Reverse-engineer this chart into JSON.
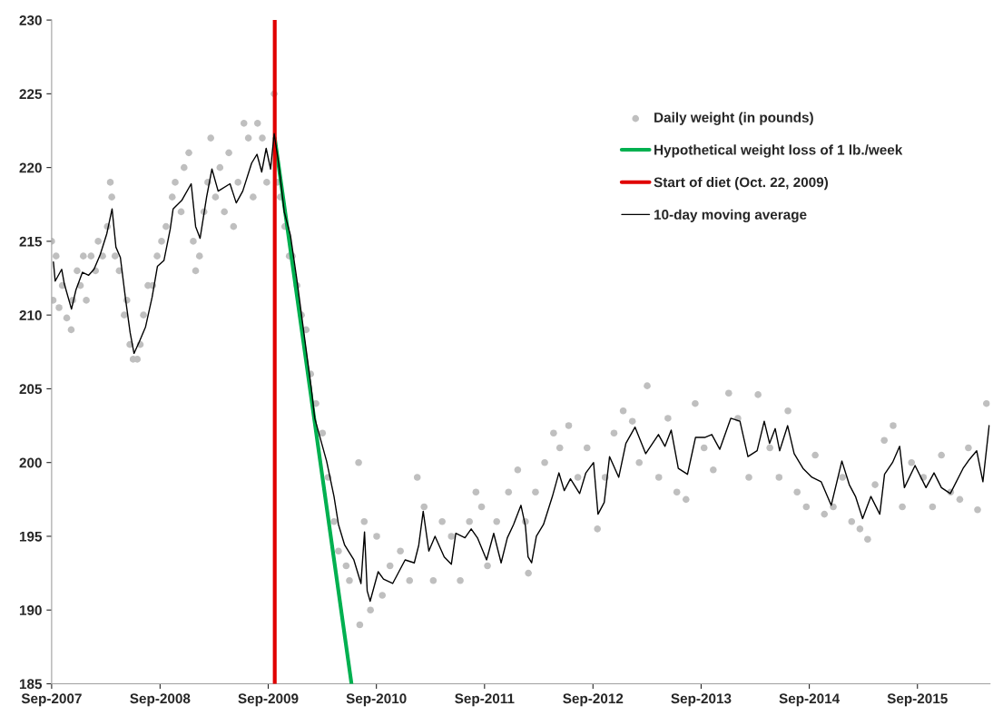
{
  "chart_data": {
    "type": "line",
    "xlim": [
      "2007-09-30",
      "2016-06-01"
    ],
    "xticks": [
      {
        "value": "2007-09-30",
        "label": "Sep-2007"
      },
      {
        "value": "2008-09-30",
        "label": "Sep-2008"
      },
      {
        "value": "2009-09-30",
        "label": "Sep-2009"
      },
      {
        "value": "2010-09-30",
        "label": "Sep-2010"
      },
      {
        "value": "2011-09-30",
        "label": "Sep-2011"
      },
      {
        "value": "2012-09-30",
        "label": "Sep-2012"
      },
      {
        "value": "2013-09-30",
        "label": "Sep-2013"
      },
      {
        "value": "2014-09-30",
        "label": "Sep-2014"
      },
      {
        "value": "2015-09-30",
        "label": "Sep-2015"
      }
    ],
    "ylim": [
      185,
      230
    ],
    "yticks": [
      185,
      190,
      195,
      200,
      205,
      210,
      215,
      220,
      225,
      230
    ],
    "grid": false,
    "legend": "top right",
    "series": [
      {
        "name": "Daily weight (in pounds)",
        "type": "scatter",
        "marker": "circle",
        "color": "#bfbfbf",
        "x": [
          "2007-09-30",
          "2007-10-05",
          "2007-10-15",
          "2007-10-25",
          "2007-11-05",
          "2007-11-20",
          "2007-12-05",
          "2007-12-10",
          "2007-12-25",
          "2008-01-05",
          "2008-01-15",
          "2008-01-25",
          "2008-02-10",
          "2008-02-25",
          "2008-03-05",
          "2008-03-20",
          "2008-04-05",
          "2008-04-15",
          "2008-04-20",
          "2008-05-01",
          "2008-05-15",
          "2008-06-01",
          "2008-06-10",
          "2008-06-20",
          "2008-07-01",
          "2008-07-15",
          "2008-07-25",
          "2008-08-05",
          "2008-08-20",
          "2008-09-05",
          "2008-09-20",
          "2008-10-05",
          "2008-10-20",
          "2008-11-10",
          "2008-11-20",
          "2008-12-10",
          "2008-12-20",
          "2009-01-05",
          "2009-01-20",
          "2009-01-28",
          "2009-02-10",
          "2009-02-25",
          "2009-03-10",
          "2009-03-20",
          "2009-04-05",
          "2009-04-20",
          "2009-05-05",
          "2009-05-20",
          "2009-06-05",
          "2009-06-20",
          "2009-07-10",
          "2009-07-25",
          "2009-08-10",
          "2009-08-25",
          "2009-09-10",
          "2009-09-25",
          "2009-10-20",
          "2009-11-01",
          "2009-11-10",
          "2009-11-25",
          "2009-12-10",
          "2009-12-20",
          "2010-01-05",
          "2010-01-20",
          "2010-02-05",
          "2010-02-20",
          "2010-03-10",
          "2010-04-01",
          "2010-04-20",
          "2010-05-10",
          "2010-05-25",
          "2010-06-20",
          "2010-07-01",
          "2010-08-01",
          "2010-08-05",
          "2010-08-20",
          "2010-09-10",
          "2010-10-01",
          "2010-10-20",
          "2010-11-15",
          "2010-12-20",
          "2011-01-20",
          "2011-02-15",
          "2011-03-10",
          "2011-04-10",
          "2011-05-10",
          "2011-06-10",
          "2011-07-10",
          "2011-08-10",
          "2011-09-01",
          "2011-09-20",
          "2011-10-10",
          "2011-11-10",
          "2011-12-20",
          "2012-01-20",
          "2012-02-15",
          "2012-02-25",
          "2012-03-20",
          "2012-04-20",
          "2012-05-20",
          "2012-06-10",
          "2012-07-10",
          "2012-08-10",
          "2012-09-10",
          "2012-10-15",
          "2012-11-10",
          "2012-12-10",
          "2013-01-10",
          "2013-02-10",
          "2013-03-05",
          "2013-04-01",
          "2013-05-10",
          "2013-06-10",
          "2013-07-10",
          "2013-08-10",
          "2013-09-10",
          "2013-10-10",
          "2013-11-10",
          "2014-01-01",
          "2014-02-01",
          "2014-03-10",
          "2014-04-10",
          "2014-05-20",
          "2014-06-20",
          "2014-07-20",
          "2014-08-20",
          "2014-09-20",
          "2014-10-20",
          "2014-11-20",
          "2014-12-20",
          "2015-01-20",
          "2015-02-20",
          "2015-03-20",
          "2015-04-15",
          "2015-05-10",
          "2015-06-10",
          "2015-07-10",
          "2015-08-10",
          "2015-09-10",
          "2015-10-20",
          "2015-11-20",
          "2015-12-20",
          "2016-01-20",
          "2016-02-20",
          "2016-03-20",
          "2016-04-20",
          "2016-05-20"
        ],
        "values": [
          215,
          211,
          214,
          210.5,
          212,
          209.8,
          209,
          211,
          213,
          212,
          214,
          211,
          214,
          213,
          215,
          214,
          216,
          219,
          218,
          214,
          213,
          210,
          211,
          208,
          207,
          207,
          208,
          210,
          212,
          212,
          214,
          215,
          216,
          218,
          219,
          217,
          220,
          221,
          215,
          213,
          214,
          217,
          219,
          222,
          218,
          220,
          217,
          221,
          216,
          219,
          223,
          222,
          218,
          223,
          222,
          219,
          225,
          219,
          218,
          216,
          214,
          214,
          212,
          210,
          209,
          206,
          204,
          202,
          199,
          196,
          194,
          193,
          192,
          200,
          189,
          196,
          190,
          195,
          191,
          193,
          194,
          192,
          199,
          197,
          192,
          196,
          195,
          192,
          196,
          198,
          197,
          193,
          196,
          198,
          199.5,
          196,
          192.5,
          198,
          200,
          202,
          201,
          202.5,
          199,
          201,
          195.5,
          199,
          202,
          203.5,
          202.8,
          200,
          205.2,
          199,
          203,
          198,
          197.5,
          204,
          201,
          199.5,
          204.7,
          203,
          199,
          204.6,
          201,
          199,
          203.5,
          198,
          197,
          200.5,
          196.5,
          197,
          199,
          196,
          195.5,
          194.8,
          198.5,
          201.5,
          202.5,
          197,
          200,
          199,
          197,
          200.5,
          198,
          197.5,
          201,
          196.8,
          204
        ]
      },
      {
        "name": "Hypothetical weight loss of 1 lb./week",
        "color": "#00b050",
        "x": [
          "2009-10-22",
          "2010-07-08"
        ],
        "values": [
          222,
          185
        ]
      },
      {
        "name": "Start of diet (Oct. 22, 2009)",
        "color": "#e00000",
        "x": [
          "2009-10-22",
          "2009-10-22"
        ],
        "values": [
          185,
          230
        ]
      },
      {
        "name": "10-day moving average",
        "color": "#000000",
        "x": [
          "2007-10-06",
          "2007-10-12",
          "2007-11-03",
          "2007-11-12",
          "2007-12-06",
          "2007-12-21",
          "2008-01-12",
          "2008-02-02",
          "2008-02-20",
          "2008-03-12",
          "2008-04-03",
          "2008-04-21",
          "2008-05-04",
          "2008-05-19",
          "2008-06-06",
          "2008-06-21",
          "2008-07-04",
          "2008-07-22",
          "2008-08-12",
          "2008-09-03",
          "2008-09-21",
          "2008-10-13",
          "2008-11-03",
          "2008-11-13",
          "2008-12-13",
          "2009-01-13",
          "2009-01-28",
          "2009-02-12",
          "2009-03-06",
          "2009-03-24",
          "2009-04-14",
          "2009-05-24",
          "2009-06-14",
          "2009-07-06",
          "2009-08-05",
          "2009-08-23",
          "2009-09-08",
          "2009-09-23",
          "2009-10-08",
          "2009-10-20",
          "2009-11-04",
          "2009-11-23",
          "2009-12-14",
          "2010-01-04",
          "2010-01-23",
          "2010-02-22",
          "2010-03-06",
          "2010-04-15",
          "2010-05-10",
          "2010-05-25",
          "2010-06-15",
          "2010-07-16",
          "2010-08-09",
          "2010-08-21",
          "2010-08-30",
          "2010-09-09",
          "2010-10-06",
          "2010-10-24",
          "2010-11-24",
          "2011-01-05",
          "2011-02-05",
          "2011-02-20",
          "2011-03-07",
          "2011-03-26",
          "2011-04-16",
          "2011-05-17",
          "2011-06-10",
          "2011-06-25",
          "2011-07-26",
          "2011-08-16",
          "2011-09-06",
          "2011-10-07",
          "2011-10-31",
          "2011-11-25",
          "2011-12-16",
          "2012-01-06",
          "2012-01-31",
          "2012-02-15",
          "2012-02-24",
          "2012-03-07",
          "2012-03-23",
          "2012-04-16",
          "2012-05-16",
          "2012-06-07",
          "2012-06-25",
          "2012-07-16",
          "2012-08-16",
          "2012-09-06",
          "2012-10-02",
          "2012-10-17",
          "2012-11-07",
          "2012-11-25",
          "2012-12-26",
          "2013-01-19",
          "2013-02-19",
          "2013-03-27",
          "2013-05-09",
          "2013-05-31",
          "2013-06-21",
          "2013-07-15",
          "2013-08-15",
          "2013-09-11",
          "2013-10-12",
          "2013-11-05",
          "2013-12-02",
          "2014-01-08",
          "2014-02-08",
          "2014-03-07",
          "2014-04-07",
          "2014-05-01",
          "2014-05-19",
          "2014-06-07",
          "2014-06-22",
          "2014-07-19",
          "2014-08-10",
          "2014-09-09",
          "2014-10-09",
          "2014-11-09",
          "2014-12-13",
          "2015-01-18",
          "2015-02-12",
          "2015-03-05",
          "2015-03-29",
          "2015-04-26",
          "2015-05-26",
          "2015-06-11",
          "2015-07-08",
          "2015-08-01",
          "2015-08-17",
          "2015-09-22",
          "2015-10-29",
          "2015-11-25",
          "2015-12-20",
          "2016-01-19",
          "2016-03-02",
          "2016-03-23",
          "2016-04-17",
          "2016-05-08",
          "2016-05-29"
        ],
        "values": [
          213.6,
          212.3,
          213.1,
          212.1,
          210.4,
          211.7,
          212.9,
          212.7,
          213.1,
          214.1,
          215.5,
          217.2,
          214.6,
          213.9,
          211.0,
          208.8,
          207.4,
          208.2,
          209.2,
          211.2,
          213.3,
          213.7,
          215.8,
          217.2,
          217.8,
          218.9,
          216.0,
          215.2,
          218.0,
          219.9,
          218.4,
          218.9,
          217.6,
          218.4,
          220.3,
          220.9,
          219.7,
          221.3,
          219.9,
          222.3,
          220.3,
          217.0,
          215.4,
          212.5,
          209.6,
          205.1,
          203.0,
          200.1,
          197.7,
          195.8,
          194.4,
          193.4,
          191.8,
          195.3,
          191.3,
          190.6,
          192.6,
          192.1,
          191.8,
          193.4,
          193.2,
          194.4,
          196.7,
          194.0,
          195.0,
          193.6,
          193.1,
          195.2,
          194.9,
          195.5,
          194.9,
          193.4,
          195.2,
          193.2,
          194.9,
          195.8,
          197.1,
          195.7,
          193.6,
          193.2,
          195.0,
          195.8,
          197.7,
          199.3,
          198.1,
          198.9,
          197.9,
          199.3,
          200.0,
          196.5,
          197.3,
          200.4,
          199.0,
          201.3,
          202.4,
          200.6,
          201.9,
          201.1,
          202.2,
          199.6,
          199.2,
          201.7,
          201.7,
          201.9,
          200.9,
          203.0,
          202.8,
          200.4,
          200.8,
          202.8,
          201.3,
          202.3,
          200.8,
          202.5,
          200.6,
          199.6,
          199.0,
          198.7,
          197.1,
          200.1,
          198.5,
          197.7,
          196.2,
          197.7,
          196.5,
          199.2,
          200.0,
          201.1,
          198.3,
          199.8,
          198.3,
          199.3,
          198.3,
          197.9,
          199.6,
          200.2,
          200.8,
          198.7,
          202.5
        ]
      }
    ]
  }
}
